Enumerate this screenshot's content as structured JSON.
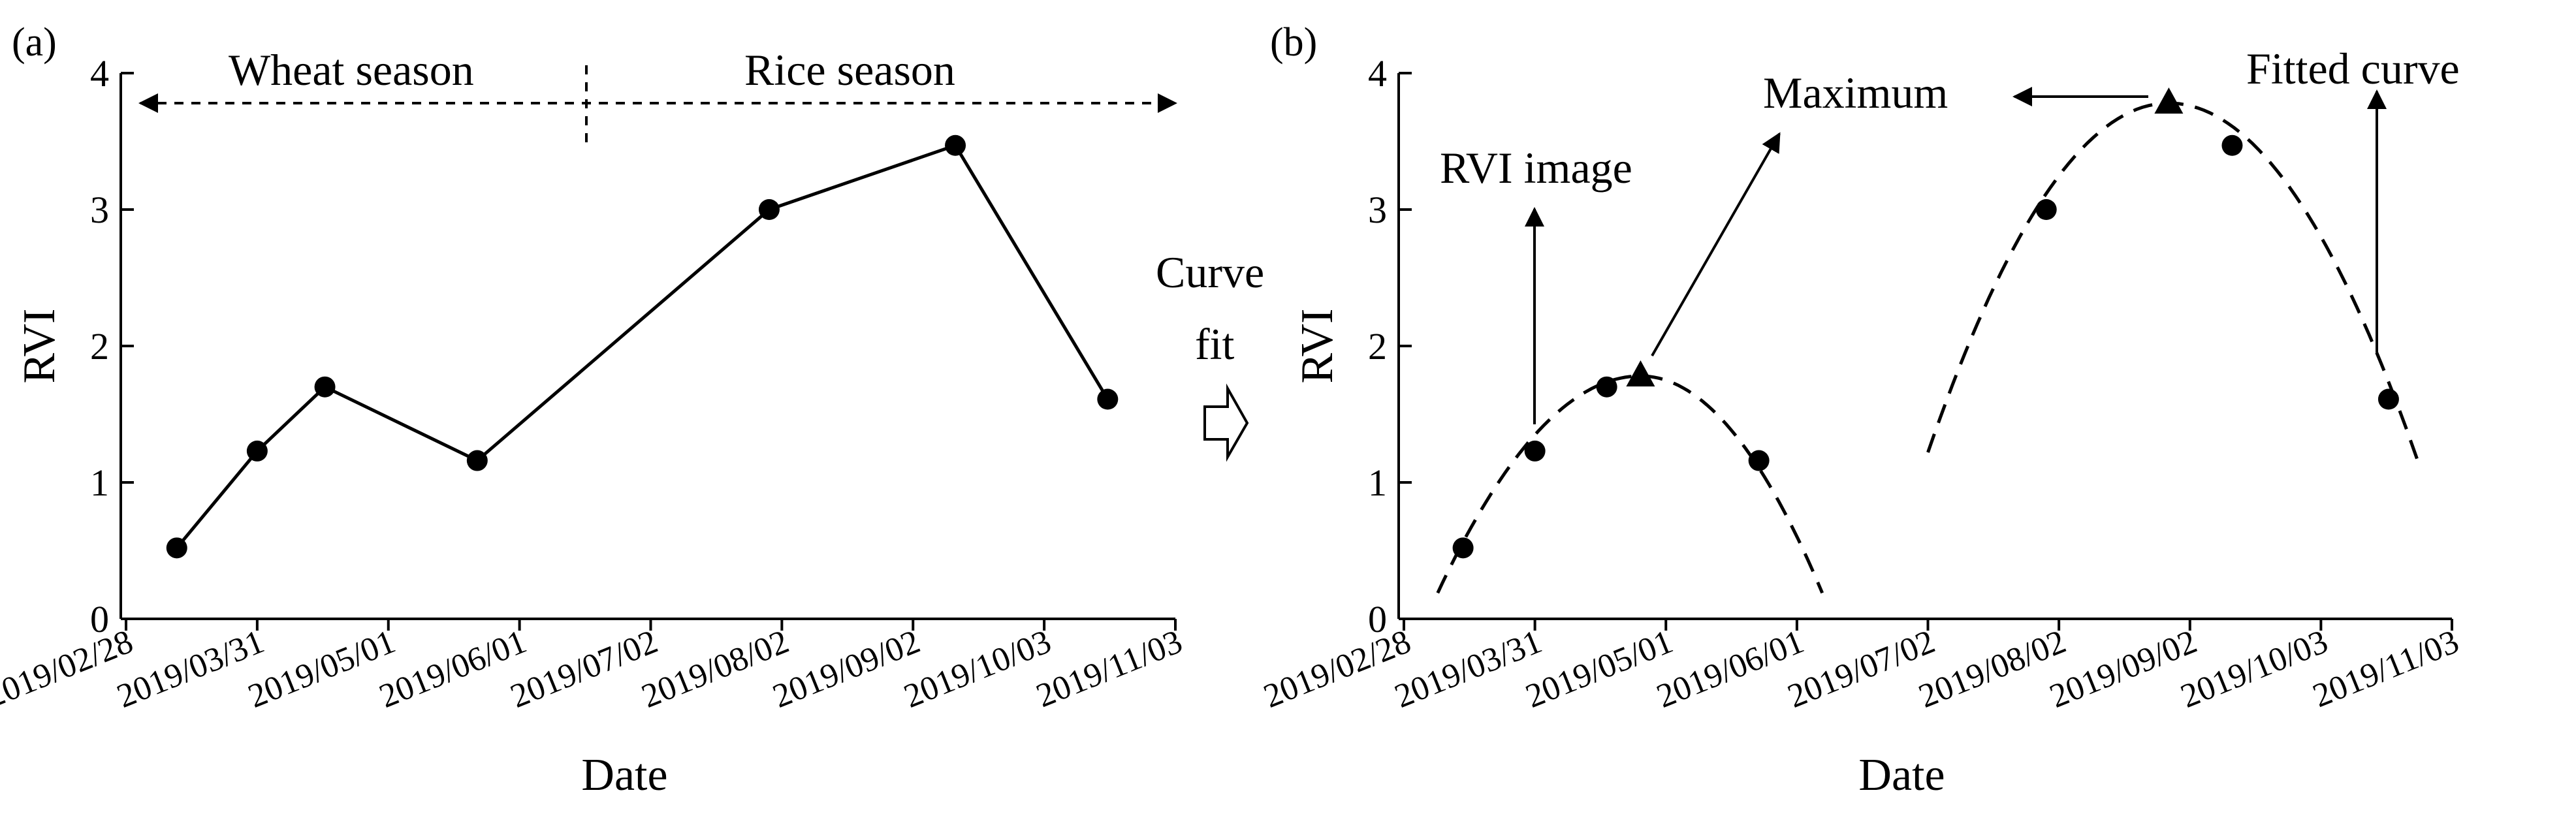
{
  "figure_labels": {
    "panel_a": "(a)",
    "panel_b": "(b)",
    "wheat_season": "Wheat season",
    "rice_season": "Rice season",
    "curve_fit_line1": "Curve",
    "curve_fit_line2": "fit",
    "rvi_image": "RVI image",
    "maximum": "Maximum",
    "fitted_curve": "Fitted curve"
  },
  "chart_data": [
    {
      "type": "line",
      "panel": "(a)",
      "title": "",
      "xlabel": "Date",
      "ylabel": "RVI",
      "ylim": [
        0,
        4
      ],
      "yticks": [
        0,
        1,
        2,
        3,
        4
      ],
      "xticks": [
        "2019/02/28",
        "2019/03/31",
        "2019/05/01",
        "2019/06/01",
        "2019/07/02",
        "2019/08/02",
        "2019/09/02",
        "2019/10/03",
        "2019/11/03"
      ],
      "x_tick_days": [
        0,
        31,
        62,
        93,
        124,
        155,
        186,
        217,
        248
      ],
      "series": [
        {
          "name": "RVI",
          "x_days": [
            12,
            31,
            47,
            83,
            152,
            196,
            232
          ],
          "values": [
            0.52,
            1.23,
            1.7,
            1.16,
            3.0,
            3.47,
            1.61
          ]
        }
      ],
      "season_divider_day": 109
    },
    {
      "type": "scatter",
      "panel": "(b)",
      "title": "",
      "xlabel": "Date",
      "ylabel": "RVI",
      "ylim": [
        0,
        4
      ],
      "yticks": [
        0,
        1,
        2,
        3,
        4
      ],
      "xticks": [
        "2019/02/28",
        "2019/03/31",
        "2019/05/01",
        "2019/06/01",
        "2019/07/02",
        "2019/08/02",
        "2019/09/02",
        "2019/10/03",
        "2019/11/03"
      ],
      "x_tick_days": [
        0,
        31,
        62,
        93,
        124,
        155,
        186,
        217,
        248
      ],
      "points": {
        "x_days": [
          14,
          31,
          48,
          84,
          152,
          196,
          233
        ],
        "values": [
          0.52,
          1.23,
          1.7,
          1.16,
          3.0,
          3.47,
          1.61
        ]
      },
      "maxima": {
        "x_days": [
          56,
          181
        ],
        "values": [
          1.78,
          3.78
        ]
      },
      "fitted_curves": [
        {
          "name": "Wheat fit",
          "x_range": [
            8,
            99
          ],
          "peak_day": 56,
          "peak_value": 1.78,
          "end_values": [
            0.19,
            0.19
          ]
        },
        {
          "name": "Rice fit",
          "x_range": [
            124,
            240
          ],
          "peak_day": 181,
          "peak_value": 3.78,
          "end_values": [
            1.22,
            1.15
          ]
        }
      ]
    }
  ]
}
